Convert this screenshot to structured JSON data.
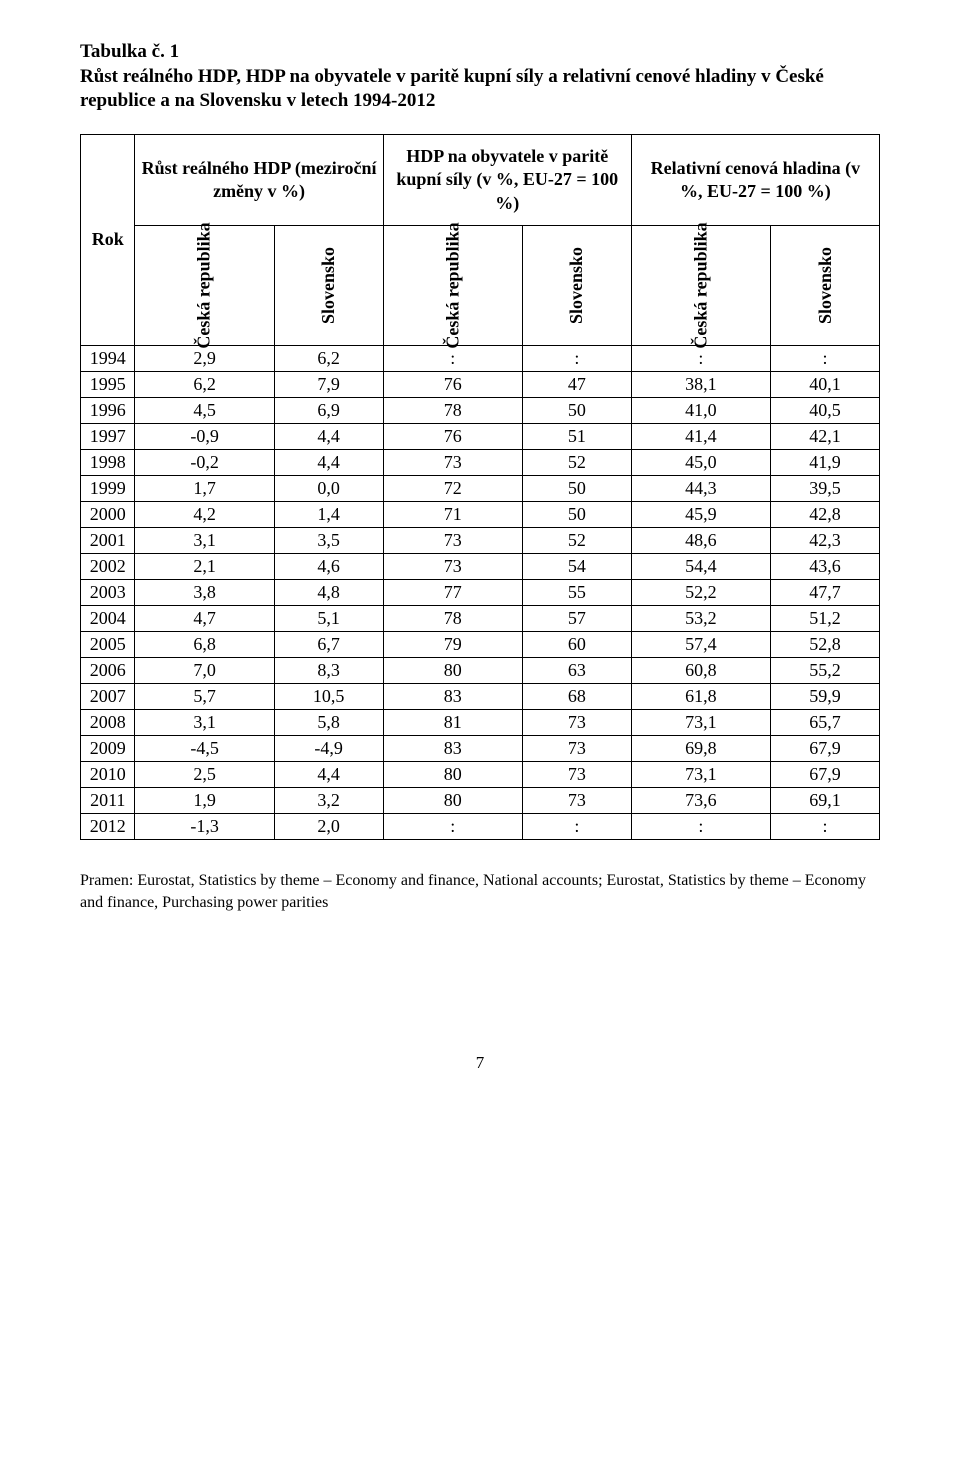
{
  "title": {
    "line1": "Tabulka č. 1",
    "line2": "Růst reálného HDP, HDP na obyvatele v paritě kupní síly a relativní cenové hladiny v České republice a na Slovensku v letech 1994-2012"
  },
  "headers": {
    "rok": "Rok",
    "group1": "Růst reálného HDP (meziroční změny v %)",
    "group2": "HDP na obyvatele v paritě kupní síly (v %, EU-27 = 100 %)",
    "group3": "Relativní cenová hladina (v %, EU-27 = 100 %)",
    "ceska": "Česká republika",
    "slovensko": "Slovensko"
  },
  "rows": [
    {
      "year": "1994",
      "c1": "2,9",
      "c2": "6,2",
      "c3": ":",
      "c4": ":",
      "c5": ":",
      "c6": ":"
    },
    {
      "year": "1995",
      "c1": "6,2",
      "c2": "7,9",
      "c3": "76",
      "c4": "47",
      "c5": "38,1",
      "c6": "40,1"
    },
    {
      "year": "1996",
      "c1": "4,5",
      "c2": "6,9",
      "c3": "78",
      "c4": "50",
      "c5": "41,0",
      "c6": "40,5"
    },
    {
      "year": "1997",
      "c1": "-0,9",
      "c2": "4,4",
      "c3": "76",
      "c4": "51",
      "c5": "41,4",
      "c6": "42,1"
    },
    {
      "year": "1998",
      "c1": "-0,2",
      "c2": "4,4",
      "c3": "73",
      "c4": "52",
      "c5": "45,0",
      "c6": "41,9"
    },
    {
      "year": "1999",
      "c1": "1,7",
      "c2": "0,0",
      "c3": "72",
      "c4": "50",
      "c5": "44,3",
      "c6": "39,5"
    },
    {
      "year": "2000",
      "c1": "4,2",
      "c2": "1,4",
      "c3": "71",
      "c4": "50",
      "c5": "45,9",
      "c6": "42,8"
    },
    {
      "year": "2001",
      "c1": "3,1",
      "c2": "3,5",
      "c3": "73",
      "c4": "52",
      "c5": "48,6",
      "c6": "42,3"
    },
    {
      "year": "2002",
      "c1": "2,1",
      "c2": "4,6",
      "c3": "73",
      "c4": "54",
      "c5": "54,4",
      "c6": "43,6"
    },
    {
      "year": "2003",
      "c1": "3,8",
      "c2": "4,8",
      "c3": "77",
      "c4": "55",
      "c5": "52,2",
      "c6": "47,7"
    },
    {
      "year": "2004",
      "c1": "4,7",
      "c2": "5,1",
      "c3": "78",
      "c4": "57",
      "c5": "53,2",
      "c6": "51,2"
    },
    {
      "year": "2005",
      "c1": "6,8",
      "c2": "6,7",
      "c3": "79",
      "c4": "60",
      "c5": "57,4",
      "c6": "52,8"
    },
    {
      "year": "2006",
      "c1": "7,0",
      "c2": "8,3",
      "c3": "80",
      "c4": "63",
      "c5": "60,8",
      "c6": "55,2"
    },
    {
      "year": "2007",
      "c1": "5,7",
      "c2": "10,5",
      "c3": "83",
      "c4": "68",
      "c5": "61,8",
      "c6": "59,9"
    },
    {
      "year": "2008",
      "c1": "3,1",
      "c2": "5,8",
      "c3": "81",
      "c4": "73",
      "c5": "73,1",
      "c6": "65,7"
    },
    {
      "year": "2009",
      "c1": "-4,5",
      "c2": "-4,9",
      "c3": "83",
      "c4": "73",
      "c5": "69,8",
      "c6": "67,9"
    },
    {
      "year": "2010",
      "c1": "2,5",
      "c2": "4,4",
      "c3": "80",
      "c4": "73",
      "c5": "73,1",
      "c6": "67,9"
    },
    {
      "year": "2011",
      "c1": "1,9",
      "c2": "3,2",
      "c3": "80",
      "c4": "73",
      "c5": "73,6",
      "c6": "69,1"
    },
    {
      "year": "2012",
      "c1": "-1,3",
      "c2": "2,0",
      "c3": ":",
      "c4": ":",
      "c5": ":",
      "c6": ":"
    }
  ],
  "footnote": "Pramen: Eurostat, Statistics by theme – Economy and finance, National accounts; Eurostat, Statistics by theme – Economy and finance, Purchasing power parities",
  "pageNumber": "7",
  "style": {
    "font_family": "Times New Roman",
    "title_fontsize_pt": 14,
    "body_fontsize_pt": 13,
    "footnote_fontsize_pt": 12,
    "text_color": "#000000",
    "background_color": "#ffffff",
    "border_color": "#000000"
  }
}
